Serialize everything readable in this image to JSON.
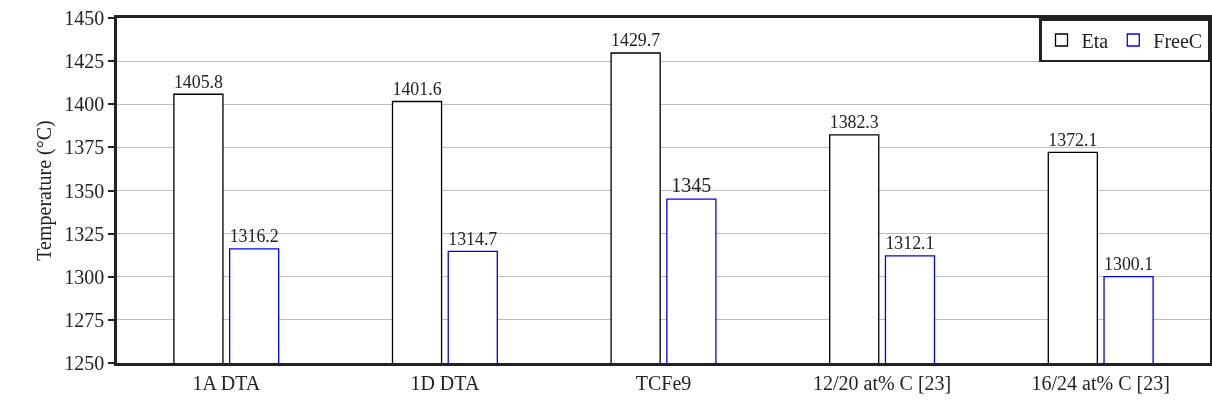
{
  "chart_data": {
    "type": "bar",
    "ylabel": "Temperature (°C)",
    "categories": [
      "1A DTA",
      "1D DTA",
      "TCFe9",
      "12/20 at% C [23]",
      "16/24 at% C [23]"
    ],
    "series": [
      {
        "name": "Eta",
        "color": "#000000",
        "values": [
          1405.8,
          1401.6,
          1429.7,
          1382.3,
          1372.1
        ]
      },
      {
        "name": "FreeC",
        "color": "#0000ff",
        "values": [
          1316.2,
          1314.7,
          1345,
          1312.1,
          1300.1
        ]
      }
    ],
    "ylim": [
      1250,
      1450
    ],
    "yticks": [
      1250,
      1275,
      1300,
      1325,
      1350,
      1375,
      1400,
      1425,
      1450
    ],
    "grid": "y",
    "legend": "top right",
    "data_labels": true
  }
}
